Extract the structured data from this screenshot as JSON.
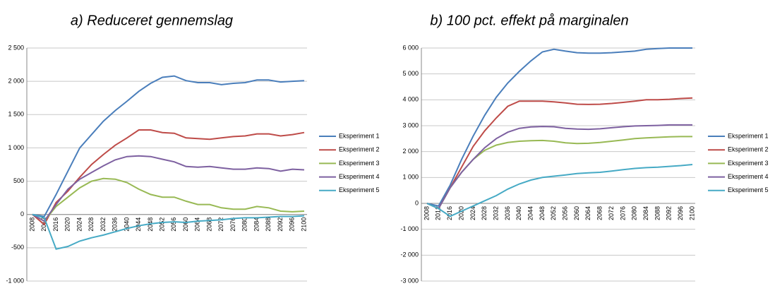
{
  "chart_data": [
    {
      "type": "line",
      "title": "a) Reduceret gennemslag",
      "categories": [
        "2008",
        "2012",
        "2016",
        "2020",
        "2024",
        "2028",
        "2032",
        "2036",
        "2040",
        "2044",
        "2048",
        "2052",
        "2056",
        "2060",
        "2064",
        "2068",
        "2072",
        "2076",
        "2080",
        "2084",
        "2088",
        "2092",
        "2096",
        "2100"
      ],
      "ylim": [
        -1000,
        2500
      ],
      "yticks": [
        {
          "value": -1000,
          "label": "-1 000"
        },
        -500,
        0,
        500,
        {
          "value": 1000,
          "label": "1 000"
        },
        {
          "value": 1500,
          "label": "1 500"
        },
        {
          "value": 2000,
          "label": "2 000"
        },
        {
          "value": 2500,
          "label": "2 500"
        }
      ],
      "grid": true,
      "legend": "right",
      "series": [
        {
          "name": "Eksperiment 1",
          "color": "#4a7ebb",
          "values": [
            0,
            -30,
            300,
            650,
            1000,
            1200,
            1400,
            1560,
            1700,
            1850,
            1970,
            2060,
            2080,
            2010,
            1980,
            1980,
            1950,
            1970,
            1980,
            2020,
            2020,
            1990,
            2000,
            2010
          ]
        },
        {
          "name": "Eksperiment 2",
          "color": "#be4b48",
          "values": [
            0,
            -150,
            180,
            350,
            560,
            750,
            900,
            1040,
            1150,
            1270,
            1270,
            1230,
            1220,
            1150,
            1140,
            1130,
            1150,
            1170,
            1180,
            1210,
            1210,
            1180,
            1200,
            1230
          ]
        },
        {
          "name": "Eksperiment 3",
          "color": "#98b954",
          "values": [
            0,
            -100,
            120,
            260,
            400,
            500,
            540,
            530,
            480,
            380,
            300,
            260,
            260,
            200,
            150,
            150,
            100,
            80,
            80,
            120,
            100,
            50,
            40,
            50
          ]
        },
        {
          "name": "Eksperiment 4",
          "color": "#7d60a0",
          "values": [
            0,
            -100,
            150,
            380,
            530,
            630,
            730,
            820,
            870,
            880,
            870,
            830,
            790,
            720,
            710,
            720,
            700,
            680,
            680,
            700,
            690,
            650,
            680,
            670
          ]
        },
        {
          "name": "Eksperiment 5",
          "color": "#46aac5",
          "values": [
            0,
            -50,
            -520,
            -480,
            -400,
            -350,
            -310,
            -260,
            -210,
            -170,
            -140,
            -120,
            -110,
            -120,
            -100,
            -90,
            -80,
            -60,
            -50,
            -50,
            -40,
            -30,
            -30,
            -20
          ]
        }
      ]
    },
    {
      "type": "line",
      "title": "b) 100 pct. effekt på marginalen",
      "categories": [
        "2008",
        "2012",
        "2016",
        "2020",
        "2024",
        "2028",
        "2032",
        "2036",
        "2040",
        "2044",
        "2048",
        "2052",
        "2056",
        "2060",
        "2064",
        "2068",
        "2072",
        "2076",
        "2080",
        "2084",
        "2088",
        "2092",
        "2096",
        "2100"
      ],
      "ylim": [
        -3000,
        6000
      ],
      "yticks": [
        {
          "value": -3000,
          "label": "-3 000"
        },
        {
          "value": -2000,
          "label": "-2 000"
        },
        {
          "value": -1000,
          "label": "-1 000"
        },
        0,
        {
          "value": 1000,
          "label": "1 000"
        },
        {
          "value": 2000,
          "label": "2 000"
        },
        {
          "value": 3000,
          "label": "3 000"
        },
        {
          "value": 4000,
          "label": "4 000"
        },
        {
          "value": 5000,
          "label": "5 000"
        },
        {
          "value": 6000,
          "label": "6 000"
        }
      ],
      "grid": true,
      "legend": "right",
      "series": [
        {
          "name": "Eksperiment 1",
          "color": "#4a7ebb",
          "values": [
            0,
            -100,
            700,
            1700,
            2600,
            3400,
            4100,
            4650,
            5100,
            5500,
            5850,
            5950,
            5880,
            5820,
            5800,
            5800,
            5820,
            5850,
            5880,
            5950,
            5980,
            6000,
            6000,
            6000
          ]
        },
        {
          "name": "Eksperiment 2",
          "color": "#be4b48",
          "values": [
            0,
            -200,
            600,
            1400,
            2200,
            2800,
            3300,
            3750,
            3950,
            3950,
            3950,
            3920,
            3880,
            3830,
            3820,
            3830,
            3860,
            3900,
            3950,
            4000,
            4000,
            4020,
            4050,
            4070
          ]
        },
        {
          "name": "Eksperiment 3",
          "color": "#98b954",
          "values": [
            0,
            -200,
            600,
            1200,
            1700,
            2050,
            2250,
            2350,
            2400,
            2420,
            2430,
            2400,
            2340,
            2310,
            2320,
            2350,
            2400,
            2450,
            2500,
            2530,
            2550,
            2570,
            2580,
            2580
          ]
        },
        {
          "name": "Eksperiment 4",
          "color": "#7d60a0",
          "values": [
            0,
            -200,
            600,
            1200,
            1700,
            2150,
            2500,
            2750,
            2900,
            2950,
            2970,
            2960,
            2900,
            2870,
            2860,
            2880,
            2920,
            2960,
            2990,
            3000,
            3010,
            3030,
            3030,
            3030
          ]
        },
        {
          "name": "Eksperiment 5",
          "color": "#46aac5",
          "values": [
            0,
            -200,
            -500,
            -300,
            -100,
            100,
            300,
            550,
            750,
            900,
            1000,
            1050,
            1100,
            1150,
            1180,
            1200,
            1250,
            1300,
            1350,
            1380,
            1400,
            1430,
            1460,
            1500
          ]
        }
      ]
    }
  ]
}
